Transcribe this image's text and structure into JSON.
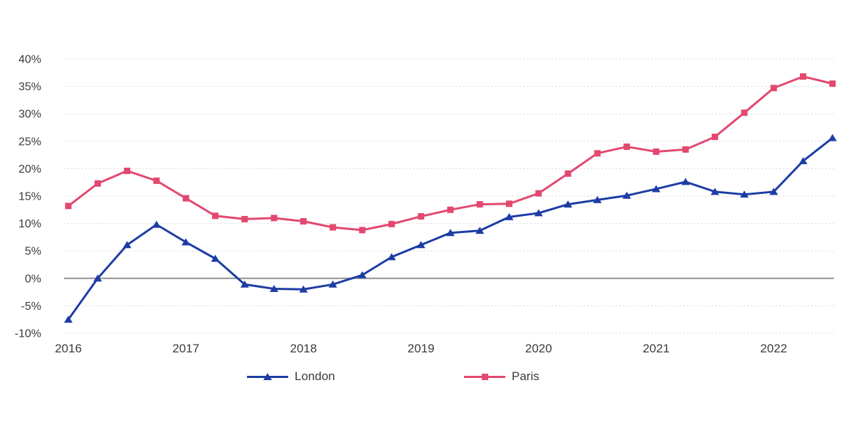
{
  "page": {
    "background": "#ffffff",
    "text_color": "#3b3b3b",
    "gridline_color": "#dadada",
    "zero_line_color": "#8f8f8f"
  },
  "legend": {
    "items": [
      {
        "label": "London",
        "marker": "triangle"
      },
      {
        "label": "Paris",
        "marker": "square"
      }
    ]
  },
  "chart_data": {
    "type": "line",
    "title": "",
    "xlabel": "",
    "ylabel": "",
    "x_frequency": "quarterly",
    "x_start": "2016 Q1",
    "x_end": "2022 Q3",
    "x_tick_labels": [
      "2016",
      "2017",
      "2018",
      "2019",
      "2020",
      "2021",
      "2022"
    ],
    "y_ticks": [
      40,
      35,
      30,
      25,
      20,
      15,
      10,
      5,
      0,
      -5,
      -10
    ],
    "y_tick_labels": [
      "40%",
      "35%",
      "30%",
      "25%",
      "20%",
      "15%",
      "10%",
      "5%",
      "0%",
      "-5%",
      "-10%"
    ],
    "ylim": [
      -10,
      40
    ],
    "y_unit": "%",
    "grid": {
      "horizontal": true,
      "style": "dashed",
      "zero_line": "solid"
    },
    "legend_position": "bottom",
    "series": [
      {
        "name": "London",
        "color": "#1d3da4",
        "marker": "triangle",
        "values": [
          -7.5,
          0.0,
          6.1,
          9.8,
          6.6,
          3.6,
          -1.1,
          -1.9,
          -2.0,
          -1.1,
          0.6,
          3.9,
          6.1,
          8.3,
          8.7,
          11.2,
          11.9,
          13.5,
          14.3,
          15.1,
          16.3,
          17.6,
          15.8,
          15.3,
          15.8,
          21.4,
          25.6
        ]
      },
      {
        "name": "Paris",
        "color": "#e3486f",
        "marker": "square",
        "values": [
          13.2,
          17.3,
          19.6,
          17.8,
          14.6,
          11.4,
          10.8,
          11.0,
          10.4,
          9.3,
          8.8,
          9.9,
          11.3,
          12.5,
          13.5,
          13.6,
          15.5,
          19.1,
          22.8,
          24.0,
          23.1,
          23.5,
          25.8,
          30.2,
          34.7,
          36.8,
          35.5
        ]
      }
    ]
  }
}
